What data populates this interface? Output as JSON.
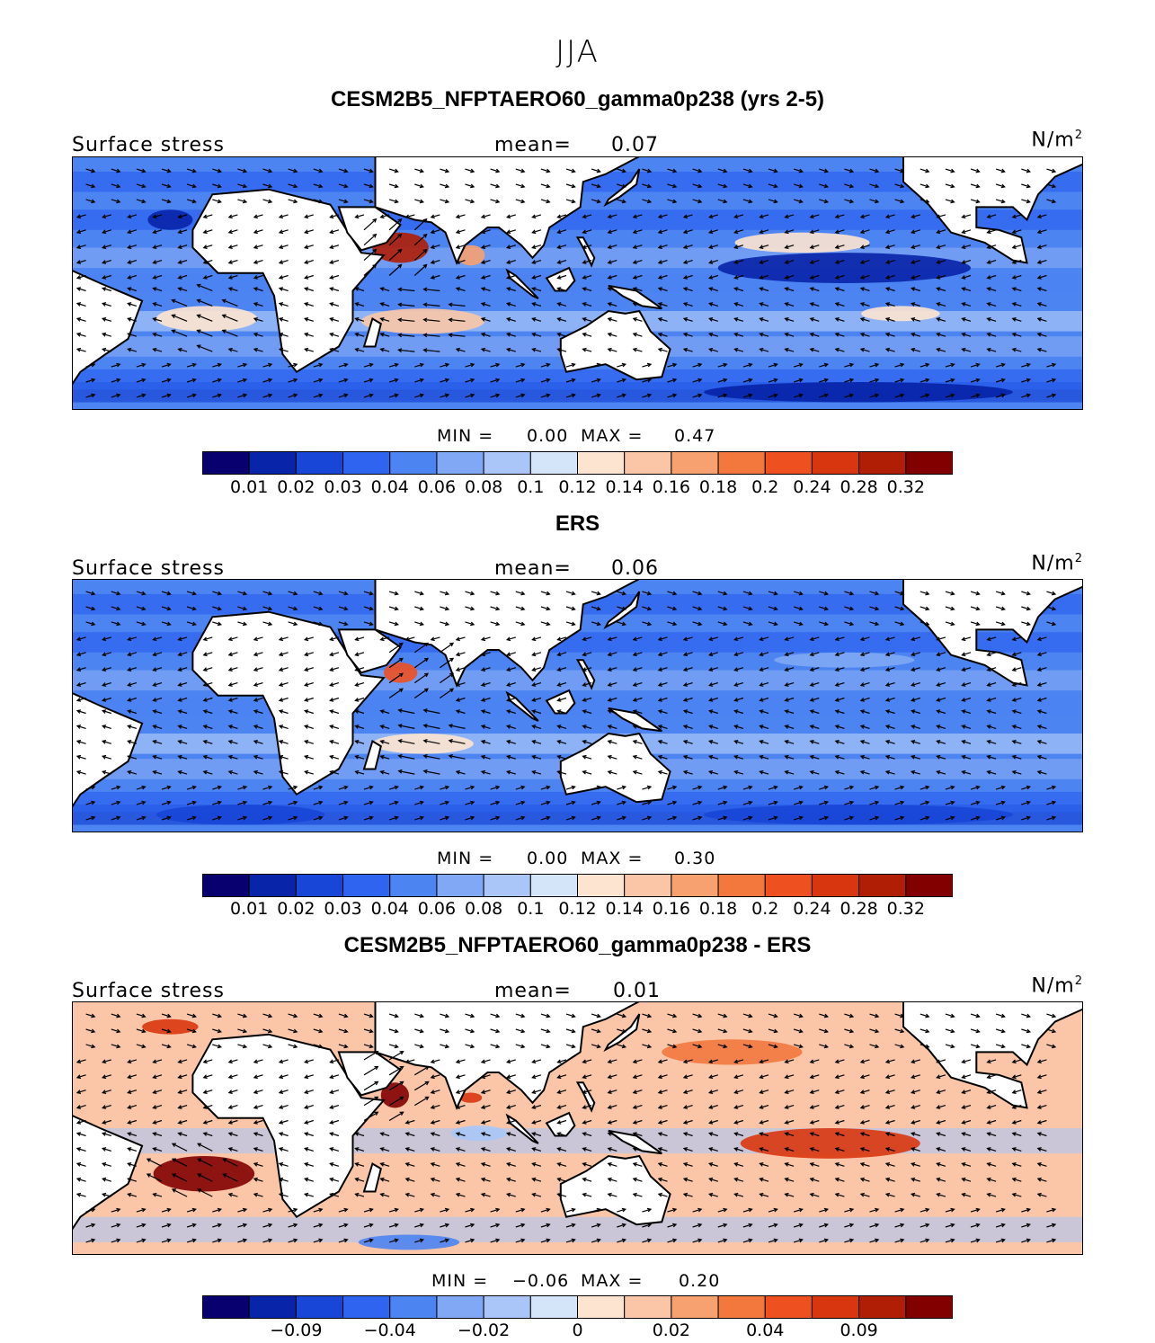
{
  "figure_title": "JJA",
  "colors": {
    "diverging": [
      "#08006e",
      "#0824a8",
      "#1846d6",
      "#2e64f0",
      "#4c84f2",
      "#80a8f4",
      "#aac6f8",
      "#d4e4f9",
      "#fde4d0",
      "#fbc6a8",
      "#f7a070",
      "#f3783e",
      "#ee5020",
      "#d8360e",
      "#b01e06",
      "#820000"
    ],
    "land": "#ffffff",
    "coast": "#000000"
  },
  "panels": [
    {
      "title": "CESM2B5_NFPTAERO60_gamma0p238 (yrs 2-5)",
      "var_label": "Surface stress",
      "mean_label": "mean=",
      "mean_value": "0.07",
      "units": "N/m",
      "units_exp": "2",
      "min_label": "MIN =",
      "min_value": "0.00",
      "max_label": "MAX =",
      "max_value": "0.47",
      "tick_labels": [
        "0.01",
        "0.02",
        "0.03",
        "0.04",
        "0.06",
        "0.08",
        "0.1",
        "0.12",
        "0.14",
        "0.16",
        "0.18",
        "0.2",
        "0.24",
        "0.28",
        "0.32"
      ]
    },
    {
      "title": "ERS",
      "var_label": "Surface stress",
      "mean_label": "mean=",
      "mean_value": "0.06",
      "units": "N/m",
      "units_exp": "2",
      "min_label": "MIN =",
      "min_value": "0.00",
      "max_label": "MAX =",
      "max_value": "0.30",
      "tick_labels": [
        "0.01",
        "0.02",
        "0.03",
        "0.04",
        "0.06",
        "0.08",
        "0.1",
        "0.12",
        "0.14",
        "0.16",
        "0.18",
        "0.2",
        "0.24",
        "0.28",
        "0.32"
      ]
    },
    {
      "title": "CESM2B5_NFPTAERO60_gamma0p238 - ERS",
      "var_label": "Surface stress",
      "mean_label": "mean=",
      "mean_value": "0.01",
      "units": "N/m",
      "units_exp": "2",
      "min_label": "MIN =",
      "min_value": "−0.06",
      "max_label": "MAX =",
      "max_value": "0.20",
      "tick_labels": [
        "−0.09",
        "−0.04",
        "−0.02",
        "0",
        "0.02",
        "0.04",
        "0.09"
      ]
    }
  ],
  "chart_data": [
    {
      "type": "heatmap",
      "title": "CESM2B5_NFPTAERO60_gamma0p238 (yrs 2-5)",
      "variable": "Surface stress",
      "units": "N/m^2",
      "season": "JJA",
      "mean": 0.07,
      "min": 0.0,
      "max": 0.47,
      "levels": [
        0.01,
        0.02,
        0.03,
        0.04,
        0.06,
        0.08,
        0.1,
        0.12,
        0.14,
        0.16,
        0.18,
        0.2,
        0.24,
        0.28,
        0.32
      ],
      "field_blobs": [
        {
          "lon": 57,
          "lat": 14,
          "rx": 10,
          "ry": 6,
          "value": 0.3
        },
        {
          "lon": 82,
          "lat": 11,
          "rx": 5,
          "ry": 4,
          "value": 0.16
        },
        {
          "lon": 65,
          "lat": -15,
          "rx": 22,
          "ry": 5,
          "value": 0.14
        },
        {
          "lon": -12,
          "lat": -14,
          "rx": 18,
          "ry": 5,
          "value": 0.12
        },
        {
          "lon": -160,
          "lat": 16,
          "rx": 24,
          "ry": 4,
          "value": 0.12
        },
        {
          "lon": -125,
          "lat": -12,
          "rx": 14,
          "ry": 3,
          "value": 0.12
        },
        {
          "lon": -145,
          "lat": 6,
          "rx": 45,
          "ry": 6,
          "value": 0.01
        },
        {
          "lon": -140,
          "lat": -43,
          "rx": 55,
          "ry": 4,
          "value": 0.01
        },
        {
          "lon": -25,
          "lat": 25,
          "rx": 8,
          "ry": 4,
          "value": 0.01
        }
      ],
      "vectors": [
        {
          "lon": -10,
          "lat": -15,
          "u": -1,
          "v": 0.4
        },
        {
          "lon": 55,
          "lat": 12,
          "u": 1,
          "v": 0.9
        },
        {
          "lon": 70,
          "lat": -15,
          "u": -1,
          "v": 0.1
        },
        {
          "lon": -160,
          "lat": 15,
          "u": -1,
          "v": 0
        },
        {
          "lon": -140,
          "lat": -45,
          "u": 1,
          "v": 0
        }
      ]
    },
    {
      "type": "heatmap",
      "title": "ERS",
      "variable": "Surface stress",
      "units": "N/m^2",
      "season": "JJA",
      "mean": 0.06,
      "min": 0.0,
      "max": 0.3,
      "levels": [
        0.01,
        0.02,
        0.03,
        0.04,
        0.06,
        0.08,
        0.1,
        0.12,
        0.14,
        0.16,
        0.18,
        0.2,
        0.24,
        0.28,
        0.32
      ],
      "field_blobs": [
        {
          "lon": 57,
          "lat": 13,
          "rx": 6,
          "ry": 4,
          "value": 0.2
        },
        {
          "lon": 65,
          "lat": -15,
          "rx": 18,
          "ry": 4,
          "value": 0.12
        },
        {
          "lon": -145,
          "lat": 18,
          "rx": 25,
          "ry": 3,
          "value": 0.06
        },
        {
          "lon": -140,
          "lat": -43,
          "rx": 55,
          "ry": 4,
          "value": 0.02
        },
        {
          "lon": 0,
          "lat": -43,
          "rx": 30,
          "ry": 4,
          "value": 0.02
        }
      ],
      "vectors": [
        {
          "lon": 60,
          "lat": 12,
          "u": 1,
          "v": 0.7
        },
        {
          "lon": 70,
          "lat": -15,
          "u": -1,
          "v": 0.2
        },
        {
          "lon": -160,
          "lat": 15,
          "u": -1,
          "v": 0
        },
        {
          "lon": -140,
          "lat": -45,
          "u": 1,
          "v": 0
        }
      ]
    },
    {
      "type": "heatmap",
      "title": "CESM2B5_NFPTAERO60_gamma0p238 - ERS",
      "variable": "Surface stress",
      "units": "N/m^2",
      "season": "JJA",
      "mean": 0.01,
      "min": -0.06,
      "max": 0.2,
      "levels": [
        -0.09,
        -0.04,
        -0.02,
        0,
        0.02,
        0.04,
        0.09
      ],
      "field_blobs": [
        {
          "lon": -13,
          "lat": -18,
          "rx": 18,
          "ry": 7,
          "value": 0.09
        },
        {
          "lon": 55,
          "lat": 13,
          "rx": 5,
          "ry": 5,
          "value": 0.12
        },
        {
          "lon": 82,
          "lat": 12,
          "rx": 4,
          "ry": 2,
          "value": 0.06
        },
        {
          "lon": -150,
          "lat": -6,
          "rx": 32,
          "ry": 6,
          "value": 0.05
        },
        {
          "lon": 175,
          "lat": 30,
          "rx": 25,
          "ry": 5,
          "value": 0.03
        },
        {
          "lon": 60,
          "lat": -45,
          "rx": 18,
          "ry": 3,
          "value": -0.04
        },
        {
          "lon": 85,
          "lat": -2,
          "rx": 10,
          "ry": 3,
          "value": -0.02
        },
        {
          "lon": -25,
          "lat": 40,
          "rx": 10,
          "ry": 3,
          "value": 0.04
        }
      ],
      "vectors": [
        {
          "lon": -15,
          "lat": -18,
          "u": -1,
          "v": 0.5
        },
        {
          "lon": 50,
          "lat": 15,
          "u": 1,
          "v": 0.6
        },
        {
          "lon": -150,
          "lat": -5,
          "u": -1,
          "v": 0
        }
      ]
    }
  ]
}
